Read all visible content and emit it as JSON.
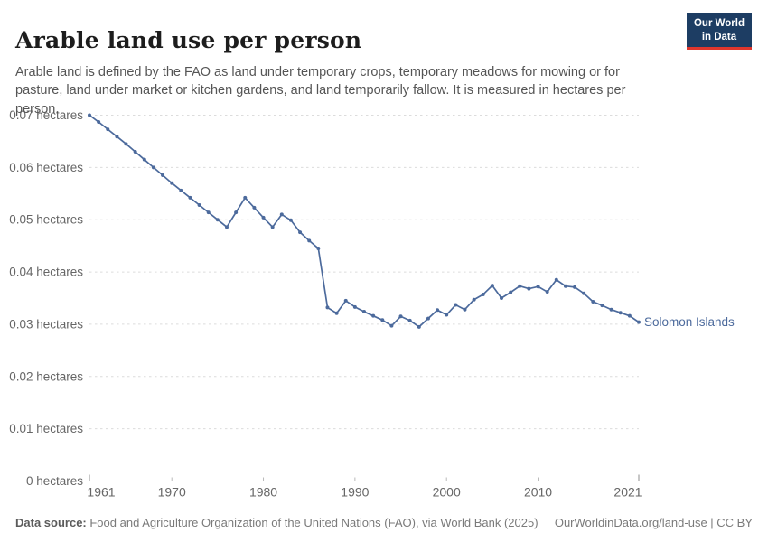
{
  "header": {
    "title": "Arable land use per person",
    "subtitle": "Arable land is defined by the FAO as land under temporary crops, temporary meadows for mowing or for pasture, land under market or kitchen gardens, and land temporarily fallow. It is measured in hectares per person.",
    "logo": {
      "line1": "Our World",
      "line2": "in Data",
      "bg_color": "#1d3d63",
      "accent_color": "#e0362d"
    }
  },
  "chart_data": {
    "type": "line",
    "title": "Arable land use per person",
    "xlabel": "",
    "ylabel": "hectares",
    "grid": true,
    "legend_position": "end-of-line",
    "xlim": [
      1961,
      2021
    ],
    "ylim": [
      0,
      0.07
    ],
    "xticks": [
      1961,
      1970,
      1980,
      1990,
      2000,
      2010,
      2021
    ],
    "yticks": [
      0,
      0.01,
      0.02,
      0.03,
      0.04,
      0.05,
      0.06,
      0.07
    ],
    "ytick_labels": [
      "0 hectares",
      "0.01 hectares",
      "0.02 hectares",
      "0.03 hectares",
      "0.04 hectares",
      "0.05 hectares",
      "0.06 hectares",
      "0.07 hectares"
    ],
    "x": [
      1961,
      1962,
      1963,
      1964,
      1965,
      1966,
      1967,
      1968,
      1969,
      1970,
      1971,
      1972,
      1973,
      1974,
      1975,
      1976,
      1977,
      1978,
      1979,
      1980,
      1981,
      1982,
      1983,
      1984,
      1985,
      1986,
      1987,
      1988,
      1989,
      1990,
      1991,
      1992,
      1993,
      1994,
      1995,
      1996,
      1997,
      1998,
      1999,
      2000,
      2001,
      2002,
      2003,
      2004,
      2005,
      2006,
      2007,
      2008,
      2009,
      2010,
      2011,
      2012,
      2013,
      2014,
      2015,
      2016,
      2017,
      2018,
      2019,
      2020,
      2021
    ],
    "series": [
      {
        "name": "Solomon Islands",
        "color": "#4c6a9c",
        "values": [
          0.07,
          0.0687,
          0.0673,
          0.0659,
          0.0645,
          0.063,
          0.0615,
          0.06,
          0.0585,
          0.057,
          0.0556,
          0.0542,
          0.0528,
          0.0514,
          0.05,
          0.0486,
          0.0514,
          0.0542,
          0.0523,
          0.0504,
          0.0486,
          0.051,
          0.0499,
          0.0476,
          0.046,
          0.0445,
          0.0332,
          0.0321,
          0.0345,
          0.0333,
          0.0324,
          0.0316,
          0.0308,
          0.0297,
          0.0315,
          0.0307,
          0.0295,
          0.0311,
          0.0327,
          0.0318,
          0.0337,
          0.0328,
          0.0347,
          0.0357,
          0.0374,
          0.035,
          0.0361,
          0.0373,
          0.0368,
          0.0372,
          0.0362,
          0.0385,
          0.0373,
          0.0371,
          0.0359,
          0.0343,
          0.0336,
          0.0328,
          0.0322,
          0.0316,
          0.0304
        ]
      }
    ],
    "style": {
      "grid_color": "#dcdcdc",
      "axis_color": "#8f8f8f",
      "tick_label_color": "#666666"
    }
  },
  "footer": {
    "datasource_label": "Data source:",
    "datasource_text": " Food and Agriculture Organization of the United Nations (FAO), via World Bank (2025)",
    "credit": "OurWorldinData.org/land-use | CC BY"
  }
}
